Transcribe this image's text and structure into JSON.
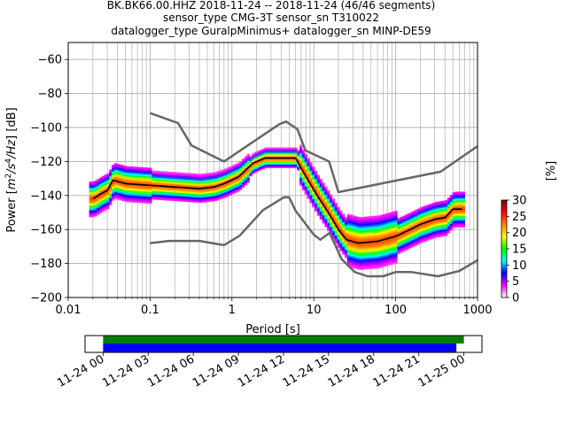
{
  "title": {
    "line1": "BK.BK66.00.HHZ   2018-11-24 -- 2018-11-24  (46/46 segments)",
    "line2": "sensor_type CMG-3T sensor_sn T310022",
    "line3": "datalogger_type GuralpMinimus+ datalogger_sn MINP-DE59"
  },
  "chart_data": [
    {
      "type": "heatmap",
      "xlabel": "Period [s]",
      "ylabel_parts": [
        "Power [",
        "m",
        "2",
        "/s",
        "4",
        "/Hz",
        "] [dB]"
      ],
      "x_scale": "log",
      "xlim": [
        0.01,
        1000
      ],
      "ylim": [
        -200,
        -50
      ],
      "x_ticks": [
        {
          "value": 0.01,
          "label": "0.01"
        },
        {
          "value": 0.1,
          "label": "0.1"
        },
        {
          "value": 1,
          "label": "1"
        },
        {
          "value": 10,
          "label": "10"
        },
        {
          "value": 100,
          "label": "100"
        },
        {
          "value": 1000,
          "label": "1000"
        }
      ],
      "y_ticks": [
        {
          "value": -60,
          "label": "−60"
        },
        {
          "value": -80,
          "label": "−80"
        },
        {
          "value": -100,
          "label": "−100"
        },
        {
          "value": -120,
          "label": "−120"
        },
        {
          "value": -140,
          "label": "−140"
        },
        {
          "value": -160,
          "label": "−160"
        },
        {
          "value": -180,
          "label": "−180"
        },
        {
          "value": -200,
          "label": "−200"
        }
      ],
      "grid": true,
      "series": [
        {
          "role": "noise-model-high",
          "color": "#666666",
          "x": [
            0.1,
            0.22,
            0.32,
            0.8,
            3.8,
            4.6,
            6.3,
            7.9,
            15.4,
            20,
            354.8,
            1000
          ],
          "y": [
            -91.5,
            -97.4,
            -110.5,
            -120,
            -98,
            -96.5,
            -101,
            -113.5,
            -120,
            -138,
            -126,
            -111
          ]
        },
        {
          "role": "noise-model-low",
          "color": "#666666",
          "x": [
            0.1,
            0.17,
            0.4,
            0.8,
            1.24,
            2.4,
            4.3,
            5,
            6,
            10,
            12,
            15.6,
            21.9,
            31.6,
            45,
            70,
            101,
            154,
            328,
            600,
            1000
          ],
          "y": [
            -168,
            -166.7,
            -166.7,
            -169.2,
            -163.7,
            -148.6,
            -141.1,
            -141.1,
            -149,
            -163,
            -166,
            -162,
            -177.5,
            -185,
            -187.5,
            -187.5,
            -185,
            -185,
            -187.5,
            -184.4,
            -178
          ]
        },
        {
          "role": "mode",
          "color": "#000000",
          "x": [
            0.02,
            0.025,
            0.03,
            0.035,
            0.05,
            0.1,
            0.2,
            0.4,
            0.6,
            0.8,
            1.2,
            1.8,
            2.5,
            4,
            6,
            7,
            9,
            11,
            15,
            20,
            25,
            35,
            60,
            100,
            150,
            200,
            300,
            400,
            500,
            650
          ],
          "y": [
            -142,
            -139,
            -137,
            -131,
            -133,
            -134,
            -135,
            -136,
            -135,
            -133,
            -129,
            -121,
            -118,
            -118,
            -118,
            -124,
            -133,
            -140,
            -150,
            -160,
            -166,
            -168,
            -167,
            -164,
            -160,
            -157,
            -154,
            -153,
            -148,
            -148
          ]
        }
      ],
      "density_colorbar": {
        "label": "[%]",
        "range": [
          0,
          30
        ],
        "ticks": [
          0,
          5,
          10,
          15,
          20,
          25,
          30
        ],
        "colors": [
          "#ffffff",
          "#ff00ff",
          "#0000ff",
          "#00ffff",
          "#00ff00",
          "#ffff00",
          "#ff8000",
          "#ff0000",
          "#800000"
        ]
      }
    },
    {
      "type": "timeline",
      "ticks": [
        "11-24 00",
        "11-24 03",
        "11-24 06",
        "11-24 09",
        "11-24 12",
        "11-24 15",
        "11-24 18",
        "11-24 21",
        "11-25 00"
      ],
      "tick_hours": [
        0,
        3,
        6,
        9,
        12,
        15,
        18,
        21,
        24
      ],
      "xlim_hours": [
        -1.2,
        25.2
      ],
      "data_coverage": {
        "color": "#008000",
        "start_hour": 0,
        "end_hour": 24.0
      },
      "psd_segments": {
        "color": "#0000ff",
        "start_hour": 0,
        "end_hour": 23.5
      }
    }
  ]
}
